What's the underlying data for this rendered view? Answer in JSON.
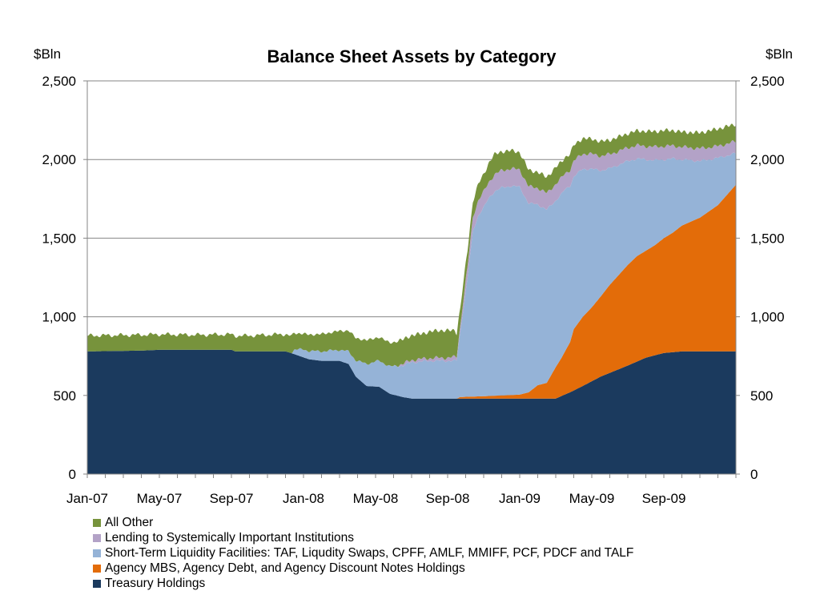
{
  "chart_data": {
    "type": "area",
    "stacked": true,
    "title": "Balance Sheet Assets by Category",
    "left_axis_unit": "$Bln",
    "right_axis_unit": "$Bln",
    "ylim": [
      0,
      2500
    ],
    "y_ticks": [
      0,
      500,
      1000,
      1500,
      2000,
      2500
    ],
    "y_tick_labels": [
      "0",
      "500",
      "1,000",
      "1,500",
      "2,000",
      "2,500"
    ],
    "gridlines": true,
    "x_tick_labels": [
      "Jan-07",
      "May-07",
      "Sep-07",
      "Jan-08",
      "May-08",
      "Sep-08",
      "Jan-09",
      "May-09",
      "Sep-09"
    ],
    "x_range_months": [
      0,
      36
    ],
    "legend_position": "bottom",
    "series": [
      {
        "name": "Treasury Holdings",
        "color": "#1b3a5e",
        "points": [
          [
            0,
            780
          ],
          [
            3,
            785
          ],
          [
            4,
            790
          ],
          [
            8,
            790
          ],
          [
            8.2,
            780
          ],
          [
            11,
            780
          ],
          [
            11.3,
            770
          ],
          [
            12.3,
            730
          ],
          [
            13,
            720
          ],
          [
            14,
            720
          ],
          [
            14.5,
            700
          ],
          [
            14.9,
            620
          ],
          [
            15.2,
            590
          ],
          [
            15.5,
            560
          ],
          [
            16.2,
            555
          ],
          [
            16.8,
            510
          ],
          [
            17.5,
            490
          ],
          [
            18,
            480
          ],
          [
            21,
            480
          ],
          [
            24,
            480
          ],
          [
            26,
            480
          ],
          [
            26.3,
            495
          ],
          [
            26.8,
            520
          ],
          [
            27.5,
            560
          ],
          [
            28.5,
            620
          ],
          [
            30,
            690
          ],
          [
            31,
            740
          ],
          [
            32,
            770
          ],
          [
            33,
            780
          ],
          [
            36,
            780
          ]
        ]
      },
      {
        "name": "Agency MBS, Agency Debt, and Agency Discount Notes Holdings",
        "color": "#e36c09",
        "points": [
          [
            0,
            0
          ],
          [
            20.5,
            0
          ],
          [
            20.7,
            10
          ],
          [
            22,
            15
          ],
          [
            23,
            20
          ],
          [
            24,
            25
          ],
          [
            24.5,
            40
          ],
          [
            25,
            85
          ],
          [
            25.5,
            100
          ],
          [
            26,
            200
          ],
          [
            26.3,
            240
          ],
          [
            26.8,
            320
          ],
          [
            27,
            390
          ],
          [
            27.5,
            440
          ],
          [
            28,
            470
          ],
          [
            28.5,
            510
          ],
          [
            29,
            560
          ],
          [
            29.5,
            600
          ],
          [
            30,
            640
          ],
          [
            30.5,
            670
          ],
          [
            31,
            680
          ],
          [
            31.5,
            700
          ],
          [
            32,
            730
          ],
          [
            32.5,
            760
          ],
          [
            33,
            800
          ],
          [
            34,
            850
          ],
          [
            35,
            930
          ],
          [
            36,
            1060
          ]
        ]
      },
      {
        "name": "Short-Term Liquidity Facilities: TAF, Liqudity Swaps, CPFF, AMLF, MMIFF, PCF, PDCF and TALF",
        "color": "#95b3d7",
        "points": [
          [
            0,
            0
          ],
          [
            11.3,
            0
          ],
          [
            11.5,
            30
          ],
          [
            12,
            50
          ],
          [
            13,
            60
          ],
          [
            14,
            70
          ],
          [
            14.5,
            80
          ],
          [
            15,
            110
          ],
          [
            15.5,
            140
          ],
          [
            16,
            160
          ],
          [
            17,
            180
          ],
          [
            17.5,
            200
          ],
          [
            18,
            230
          ],
          [
            19,
            240
          ],
          [
            20.5,
            240
          ],
          [
            20.6,
            330
          ],
          [
            20.8,
            500
          ],
          [
            21.1,
            750
          ],
          [
            21.4,
            1050
          ],
          [
            21.7,
            1150
          ],
          [
            22,
            1200
          ],
          [
            22.3,
            1260
          ],
          [
            22.6,
            1300
          ],
          [
            23,
            1320
          ],
          [
            23.5,
            1330
          ],
          [
            24,
            1320
          ],
          [
            24.5,
            1200
          ],
          [
            25,
            1150
          ],
          [
            25.5,
            1100
          ],
          [
            26,
            1060
          ],
          [
            26.5,
            1030
          ],
          [
            27,
            970
          ],
          [
            27.5,
            940
          ],
          [
            28,
            880
          ],
          [
            28.5,
            800
          ],
          [
            29,
            740
          ],
          [
            29.5,
            700
          ],
          [
            30,
            660
          ],
          [
            30.5,
            620
          ],
          [
            31,
            580
          ],
          [
            31.5,
            540
          ],
          [
            32,
            500
          ],
          [
            32.5,
            470
          ],
          [
            33,
            420
          ],
          [
            34,
            360
          ],
          [
            35,
            300
          ],
          [
            36,
            200
          ]
        ]
      },
      {
        "name": "Lending to Systemically Important Institutions",
        "color": "#b3a2c7",
        "points": [
          [
            0,
            0
          ],
          [
            17,
            0
          ],
          [
            17.5,
            10
          ],
          [
            18,
            15
          ],
          [
            20,
            20
          ],
          [
            20.5,
            25
          ],
          [
            20.7,
            40
          ],
          [
            21,
            70
          ],
          [
            21.5,
            95
          ],
          [
            22,
            100
          ],
          [
            23,
            110
          ],
          [
            24,
            110
          ],
          [
            25,
            105
          ],
          [
            26,
            105
          ],
          [
            27,
            100
          ],
          [
            28,
            95
          ],
          [
            29,
            90
          ],
          [
            30,
            85
          ],
          [
            31,
            85
          ],
          [
            32,
            85
          ],
          [
            33,
            80
          ],
          [
            34,
            80
          ],
          [
            35,
            75
          ],
          [
            36,
            75
          ]
        ]
      },
      {
        "name": "All Other",
        "color": "#77933c",
        "points": [
          [
            0,
            100
          ],
          [
            3,
            100
          ],
          [
            6,
            95
          ],
          [
            9,
            100
          ],
          [
            11,
            110
          ],
          [
            12,
            100
          ],
          [
            13,
            110
          ],
          [
            14,
            120
          ],
          [
            14.8,
            140
          ],
          [
            15.5,
            150
          ],
          [
            16.5,
            150
          ],
          [
            17.5,
            155
          ],
          [
            18.5,
            160
          ],
          [
            19.5,
            175
          ],
          [
            20.4,
            170
          ],
          [
            20.7,
            110
          ],
          [
            21.5,
            100
          ],
          [
            22,
            110
          ],
          [
            22.5,
            130
          ],
          [
            23,
            120
          ],
          [
            24,
            110
          ],
          [
            25,
            100
          ],
          [
            26,
            105
          ],
          [
            27,
            100
          ],
          [
            28,
            95
          ],
          [
            29,
            90
          ],
          [
            30,
            90
          ],
          [
            31,
            95
          ],
          [
            32,
            100
          ],
          [
            33,
            95
          ],
          [
            34,
            100
          ],
          [
            35,
            110
          ],
          [
            36,
            110
          ]
        ]
      }
    ]
  }
}
